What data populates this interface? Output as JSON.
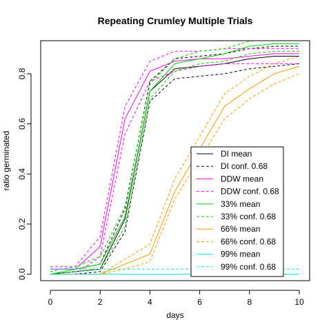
{
  "chart_data": {
    "type": "line",
    "title": "Repeating Crumley Multiple Trials",
    "xlabel": "days",
    "ylabel": "ratio germinated",
    "xlim": [
      0,
      10
    ],
    "ylim": [
      0,
      0.9
    ],
    "xticks": [
      0,
      2,
      4,
      6,
      8,
      10
    ],
    "yticks": [
      0.0,
      0.2,
      0.4,
      0.6,
      0.8
    ],
    "ytick_labels": [
      "0.0",
      "0.2",
      "0.4",
      "0.6",
      "0.8"
    ],
    "grid": false,
    "legend_position": "center-right",
    "x": [
      0,
      1,
      2,
      3,
      4,
      5,
      6,
      7,
      8,
      9,
      10
    ],
    "series": [
      {
        "name": "DI mean",
        "color": "#000000",
        "dash": "solid",
        "values": [
          0.0,
          0.01,
          0.02,
          0.22,
          0.73,
          0.82,
          0.83,
          0.84,
          0.86,
          0.87,
          0.87
        ]
      },
      {
        "name": "DI conf. 0.68",
        "color": "#000000",
        "dash": "dashed",
        "values": [
          0.0,
          0.0,
          0.01,
          0.17,
          0.69,
          0.78,
          0.79,
          0.8,
          0.82,
          0.83,
          0.84
        ]
      },
      {
        "name": "",
        "color": "#000000",
        "dash": "dashed",
        "values": [
          0.02,
          0.02,
          0.04,
          0.26,
          0.77,
          0.86,
          0.87,
          0.88,
          0.9,
          0.91,
          0.91
        ]
      },
      {
        "name": "DDW mean",
        "color": "#ff00ff",
        "dash": "solid",
        "values": [
          0.02,
          0.02,
          0.11,
          0.62,
          0.81,
          0.85,
          0.86,
          0.86,
          0.87,
          0.88,
          0.88
        ]
      },
      {
        "name": "DDW conf. 0.68",
        "color": "#ff00ff",
        "dash": "dashed",
        "values": [
          0.0,
          0.0,
          0.07,
          0.56,
          0.77,
          0.81,
          0.83,
          0.84,
          0.84,
          0.84,
          0.84
        ]
      },
      {
        "name": "",
        "color": "#ff00ff",
        "dash": "dashed",
        "values": [
          0.03,
          0.03,
          0.15,
          0.67,
          0.85,
          0.89,
          0.89,
          0.9,
          0.9,
          0.9,
          0.9
        ]
      },
      {
        "name": "33% mean",
        "color": "#00cc00",
        "dash": "solid",
        "values": [
          0.0,
          0.02,
          0.04,
          0.23,
          0.73,
          0.84,
          0.86,
          0.88,
          0.91,
          0.92,
          0.92
        ]
      },
      {
        "name": "33% conf. 0.68",
        "color": "#00cc00",
        "dash": "dashed",
        "values": [
          0.0,
          0.01,
          0.02,
          0.19,
          0.7,
          0.81,
          0.84,
          0.85,
          0.88,
          0.89,
          0.89
        ]
      },
      {
        "name": "",
        "color": "#00cc00",
        "dash": "dashed",
        "values": [
          0.01,
          0.03,
          0.07,
          0.27,
          0.76,
          0.86,
          0.89,
          0.9,
          0.93,
          0.94,
          0.94
        ]
      },
      {
        "name": "66% mean",
        "color": "#ff9900",
        "dash": "solid",
        "values": [
          0.0,
          0.0,
          0.0,
          0.04,
          0.08,
          0.33,
          0.5,
          0.67,
          0.74,
          0.8,
          0.83
        ]
      },
      {
        "name": "66% conf. 0.68",
        "color": "#ff9900",
        "dash": "dashed",
        "values": [
          0.0,
          0.0,
          0.0,
          0.02,
          0.05,
          0.3,
          0.46,
          0.62,
          0.7,
          0.76,
          0.8
        ]
      },
      {
        "name": "",
        "color": "#ff9900",
        "dash": "dashed",
        "values": [
          0.0,
          0.0,
          0.0,
          0.06,
          0.12,
          0.38,
          0.55,
          0.72,
          0.79,
          0.84,
          0.87
        ]
      },
      {
        "name": "99% mean",
        "color": "#00e5e5",
        "dash": "solid",
        "values": [
          0.0,
          0.0,
          0.0,
          0.0,
          0.0,
          0.0,
          0.0,
          0.0,
          0.0,
          0.0,
          0.0
        ]
      },
      {
        "name": "99% conf. 0.68",
        "color": "#00e5e5",
        "dash": "dashed",
        "values": [
          0.02,
          0.02,
          0.02,
          0.02,
          0.02,
          0.02,
          0.02,
          0.02,
          0.02,
          0.02,
          0.02
        ]
      }
    ],
    "legend": [
      {
        "label": "DI mean",
        "color": "#000000",
        "dash": "solid"
      },
      {
        "label": "DI conf. 0.68",
        "color": "#000000",
        "dash": "dashed"
      },
      {
        "label": "DDW mean",
        "color": "#ff00ff",
        "dash": "solid"
      },
      {
        "label": "DDW conf. 0.68",
        "color": "#ff00ff",
        "dash": "dashed"
      },
      {
        "label": "33% mean",
        "color": "#00cc00",
        "dash": "solid"
      },
      {
        "label": "33% conf. 0.68",
        "color": "#00cc00",
        "dash": "dashed"
      },
      {
        "label": "66% mean",
        "color": "#ff9900",
        "dash": "solid"
      },
      {
        "label": "66% conf. 0.68",
        "color": "#ff9900",
        "dash": "dashed"
      },
      {
        "label": "99% mean",
        "color": "#00e5e5",
        "dash": "solid"
      },
      {
        "label": "99% conf. 0.68",
        "color": "#00e5e5",
        "dash": "dashed"
      }
    ]
  }
}
